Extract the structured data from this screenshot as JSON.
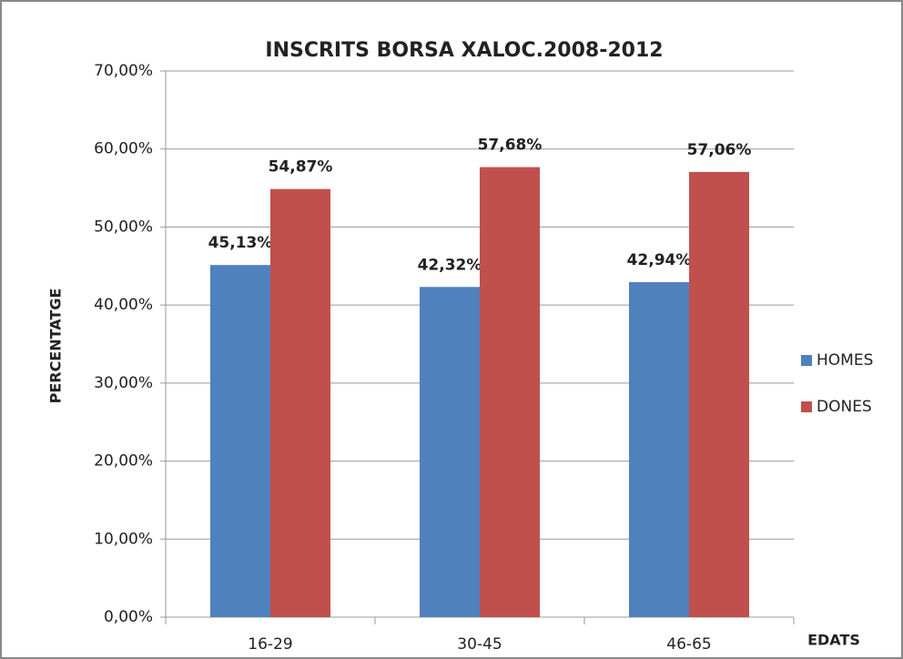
{
  "chart_data": {
    "type": "bar",
    "title": "INSCRITS BORSA XALOC.2008-2012",
    "x_label": "EDATS",
    "y_label": "PERCENTATGE",
    "categories": [
      "16-29",
      "30-45",
      "46-65"
    ],
    "series": [
      {
        "name": "HOMES",
        "color": "#4f81bd",
        "values": [
          45.13,
          42.32,
          42.94
        ],
        "value_labels": [
          "45,13%",
          "42,32%",
          "42,94%"
        ]
      },
      {
        "name": "DONES",
        "color": "#c0504d",
        "values": [
          54.87,
          57.68,
          57.06
        ],
        "value_labels": [
          "54,87%",
          "57,68%",
          "57,06%"
        ]
      }
    ],
    "ylim": [
      0,
      70
    ],
    "yticks": [
      {
        "value": 0,
        "label": "0,00%"
      },
      {
        "value": 10,
        "label": "10,00%"
      },
      {
        "value": 20,
        "label": "20,00%"
      },
      {
        "value": 30,
        "label": "30,00%"
      },
      {
        "value": 40,
        "label": "40,00%"
      },
      {
        "value": 50,
        "label": "50,00%"
      },
      {
        "value": 60,
        "label": "60,00%"
      },
      {
        "value": 70,
        "label": "70,00%"
      }
    ],
    "grid": true,
    "legend": "right"
  }
}
